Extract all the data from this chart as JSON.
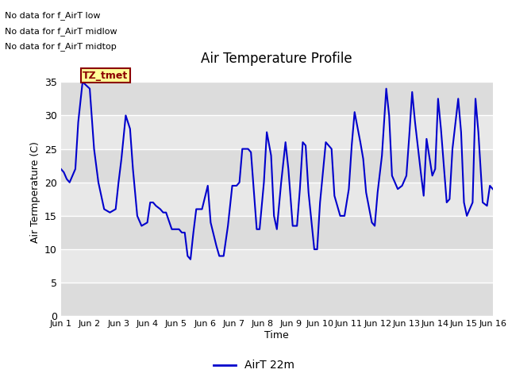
{
  "title": "Air Temperature Profile",
  "xlabel": "Time",
  "ylabel": "Air Termperature (C)",
  "xlim": [
    0,
    15
  ],
  "ylim": [
    0,
    37
  ],
  "yticks": [
    0,
    5,
    10,
    15,
    20,
    25,
    30,
    35
  ],
  "xtick_labels": [
    "Jun 1",
    "Jun 2",
    "Jun 3",
    "Jun 4",
    "Jun 5",
    "Jun 6",
    "Jun 7",
    "Jun 8",
    "Jun 9",
    "Jun 10",
    "Jun 11",
    "Jun 12",
    "Jun 13",
    "Jun 14",
    "Jun 15",
    "Jun 16"
  ],
  "line_color": "#0000cc",
  "line_width": 1.5,
  "legend_label": "AirT 22m",
  "no_data_texts": [
    "No data for f_AirT low",
    "No data for f_AirT midlow",
    "No data for f_AirT midtop"
  ],
  "tooltip_text": "TZ_tmet",
  "tooltip_color": "#8b0000",
  "tooltip_bg": "#ffff99",
  "tooltip_border": "#8b0000",
  "fig_bg": "#ffffff",
  "plot_bg_light": "#f0f0f0",
  "plot_bg_dark": "#e0e0e0",
  "grid_color": "#ffffff",
  "x_data": [
    0.0,
    0.1,
    0.2,
    0.3,
    0.5,
    0.6,
    0.75,
    1.0,
    1.15,
    1.3,
    1.5,
    1.7,
    1.9,
    2.0,
    2.1,
    2.25,
    2.4,
    2.5,
    2.65,
    2.8,
    3.0,
    3.1,
    3.2,
    3.3,
    3.45,
    3.55,
    3.65,
    3.85,
    4.1,
    4.2,
    4.3,
    4.4,
    4.5,
    4.6,
    4.7,
    4.9,
    5.1,
    5.2,
    5.4,
    5.5,
    5.65,
    5.8,
    5.95,
    6.1,
    6.2,
    6.3,
    6.5,
    6.6,
    6.8,
    6.9,
    7.05,
    7.15,
    7.3,
    7.4,
    7.5,
    7.65,
    7.8,
    7.9,
    8.05,
    8.2,
    8.3,
    8.4,
    8.5,
    8.6,
    8.8,
    8.9,
    9.0,
    9.2,
    9.4,
    9.5,
    9.7,
    9.85,
    10.0,
    10.1,
    10.2,
    10.4,
    10.5,
    10.6,
    10.8,
    10.9,
    11.0,
    11.15,
    11.3,
    11.4,
    11.5,
    11.7,
    11.85,
    12.0,
    12.1,
    12.2,
    12.3,
    12.5,
    12.6,
    12.7,
    12.9,
    13.0,
    13.1,
    13.2,
    13.4,
    13.5,
    13.6,
    13.8,
    13.9,
    14.0,
    14.1,
    14.3,
    14.4,
    14.5,
    14.65,
    14.8,
    14.9,
    15.0
  ],
  "y_data": [
    22.0,
    21.5,
    20.5,
    20.0,
    22.0,
    29.0,
    35.0,
    34.0,
    25.0,
    20.0,
    16.0,
    15.5,
    16.0,
    20.0,
    23.5,
    30.0,
    28.0,
    22.0,
    15.0,
    13.5,
    14.0,
    17.0,
    17.0,
    16.5,
    16.0,
    15.5,
    15.5,
    13.0,
    13.0,
    12.5,
    12.5,
    9.0,
    8.5,
    12.5,
    16.0,
    16.0,
    19.5,
    14.0,
    10.5,
    9.0,
    9.0,
    13.5,
    19.5,
    19.5,
    20.0,
    25.0,
    25.0,
    24.5,
    13.0,
    13.0,
    20.0,
    27.5,
    24.0,
    15.0,
    13.0,
    20.0,
    26.0,
    22.0,
    13.5,
    13.5,
    19.0,
    26.0,
    25.5,
    18.5,
    10.0,
    10.0,
    17.0,
    26.0,
    25.0,
    18.0,
    15.0,
    15.0,
    19.0,
    25.5,
    30.5,
    26.0,
    23.5,
    18.5,
    14.0,
    13.5,
    18.5,
    24.0,
    34.0,
    30.0,
    21.0,
    19.0,
    19.5,
    21.0,
    27.0,
    33.5,
    29.0,
    21.5,
    18.0,
    26.5,
    21.0,
    22.0,
    32.5,
    28.0,
    17.0,
    17.5,
    25.0,
    32.5,
    27.5,
    17.0,
    15.0,
    17.0,
    32.5,
    27.5,
    17.0,
    16.5,
    19.5,
    19.0
  ],
  "band_colors": [
    "#dcdcdc",
    "#e8e8e8"
  ]
}
